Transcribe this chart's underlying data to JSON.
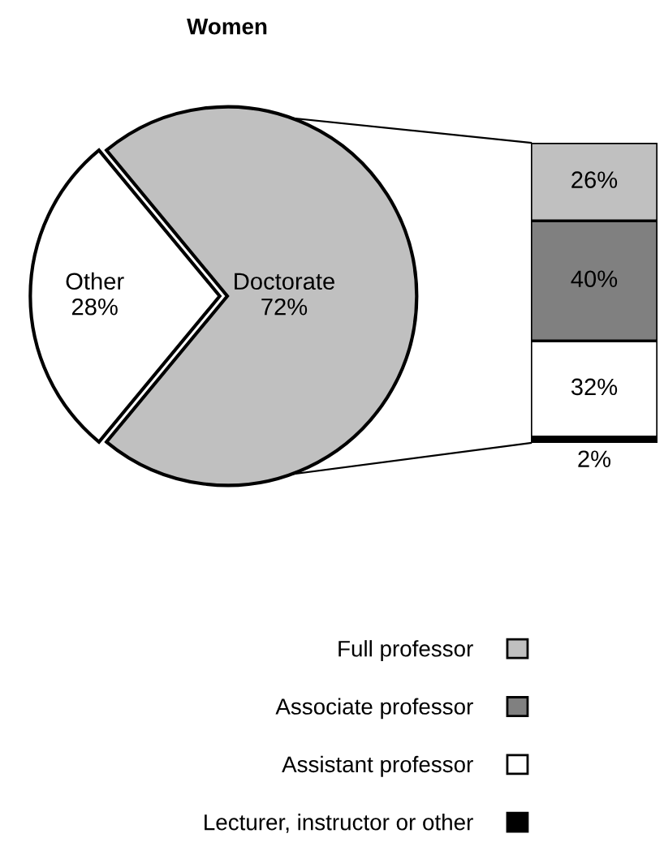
{
  "chart_data": [
    {
      "type": "pie",
      "title": "Women",
      "categories": [
        "Other",
        "Doctorate"
      ],
      "values": [
        28,
        72
      ],
      "value_labels": [
        "28%",
        "72%"
      ],
      "colors": [
        "#ffffff",
        "#c0c0c0"
      ]
    },
    {
      "type": "bar",
      "stacked": true,
      "categories": [
        null
      ],
      "tick_labels": false,
      "legend": "bottom",
      "series": [
        {
          "name": "Lecturer, instructor or other",
          "color": "#000000",
          "values": [
            2
          ],
          "value_labels": [
            "2%"
          ]
        },
        {
          "name": "Assistant professor",
          "color": "#ffffff",
          "values": [
            32
          ],
          "value_labels": [
            "32%"
          ]
        },
        {
          "name": "Associate professor",
          "color": "#808080",
          "values": [
            40
          ],
          "value_labels": [
            "40%"
          ]
        },
        {
          "name": "Full professor",
          "color": "#c0c0c0",
          "values": [
            26
          ],
          "value_labels": [
            "26%"
          ]
        }
      ]
    }
  ]
}
